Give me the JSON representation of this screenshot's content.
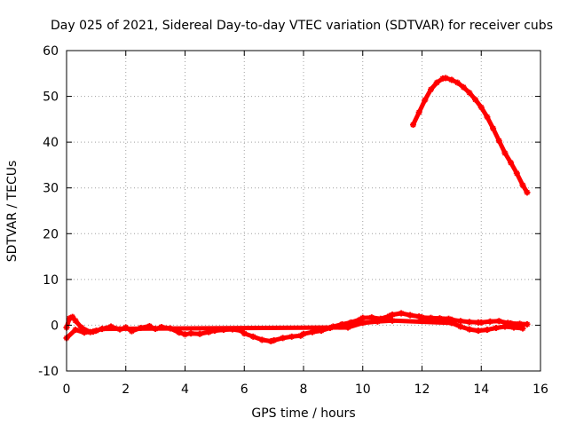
{
  "chart_data": {
    "type": "scatter",
    "title": "Day 025 of 2021, Sidereal Day-to-day VTEC variation (SDTVAR) for receiver cubs",
    "xlabel": "GPS time / hours",
    "ylabel": "SDTVAR / TECUs",
    "xlim": [
      0,
      16
    ],
    "ylim": [
      -10,
      60
    ],
    "x_ticks": [
      0,
      2,
      4,
      6,
      8,
      10,
      12,
      14,
      16
    ],
    "y_ticks": [
      -10,
      0,
      10,
      20,
      30,
      40,
      50,
      60
    ],
    "grid": true,
    "marker_color": "#ff0000",
    "series": [
      {
        "name": "sdtvar-baseline",
        "x": [
          0.0,
          0.1,
          0.2,
          0.3,
          0.5,
          0.8,
          1.0,
          1.2,
          1.5,
          1.8,
          2.0,
          2.2,
          2.5,
          2.8,
          3.0,
          3.2,
          3.5,
          3.8,
          4.0,
          4.2,
          4.5,
          4.8,
          5.0,
          5.3,
          5.6,
          5.9,
          6.0,
          6.3,
          6.6,
          6.9,
          7.0,
          7.3,
          7.6,
          7.9,
          8.0,
          8.3,
          8.6,
          8.9,
          9.0,
          9.3,
          9.6,
          9.9,
          10.0,
          10.3,
          10.6,
          10.9,
          11.0,
          11.3,
          11.6,
          11.9,
          12.0,
          12.3,
          12.6,
          12.9,
          13.0,
          13.3,
          13.6,
          13.9,
          14.0,
          14.3,
          14.6,
          14.9,
          15.0,
          15.3,
          15.55
        ],
        "y": [
          -0.5,
          1.5,
          1.8,
          1.0,
          -0.5,
          -1.5,
          -1.2,
          -0.8,
          -0.3,
          -0.9,
          -0.5,
          -1.3,
          -0.6,
          -0.2,
          -0.8,
          -0.4,
          -0.7,
          -1.6,
          -2.0,
          -1.8,
          -1.9,
          -1.5,
          -1.2,
          -1.0,
          -0.9,
          -1.2,
          -1.8,
          -2.5,
          -3.2,
          -3.5,
          -3.3,
          -2.8,
          -2.5,
          -2.3,
          -1.9,
          -1.5,
          -1.2,
          -0.6,
          -0.3,
          0.2,
          0.6,
          1.2,
          1.6,
          1.7,
          1.4,
          2.0,
          2.3,
          2.6,
          2.2,
          1.9,
          1.7,
          1.6,
          1.5,
          1.4,
          1.2,
          0.9,
          0.7,
          0.6,
          0.6,
          0.8,
          0.9,
          0.5,
          0.4,
          0.3,
          0.2
        ]
      },
      {
        "name": "sdtvar-lower-branch",
        "x": [
          0.0,
          0.3,
          0.6,
          0.9,
          1.2,
          9.5,
          10.0,
          10.5,
          11.0,
          13.0,
          13.3,
          13.6,
          13.9,
          14.2,
          14.5,
          14.8,
          15.1,
          15.4
        ],
        "y": [
          -2.8,
          -1.0,
          -1.6,
          -1.4,
          -0.8,
          -0.5,
          0.5,
          0.8,
          1.0,
          0.5,
          -0.3,
          -0.9,
          -1.2,
          -1.0,
          -0.6,
          -0.3,
          -0.5,
          -0.7
        ]
      },
      {
        "name": "sdtvar-high-arc",
        "x": [
          11.7,
          11.9,
          12.1,
          12.3,
          12.5,
          12.7,
          12.8,
          13.0,
          13.2,
          13.4,
          13.6,
          13.8,
          14.0,
          14.2,
          14.4,
          14.6,
          14.8,
          15.0,
          15.2,
          15.4,
          15.55
        ],
        "y": [
          43.8,
          46.5,
          49.2,
          51.5,
          53.0,
          53.9,
          54.0,
          53.6,
          53.0,
          52.0,
          50.8,
          49.3,
          47.6,
          45.5,
          43.0,
          40.3,
          37.6,
          35.5,
          33.2,
          30.6,
          29.0
        ]
      }
    ]
  }
}
